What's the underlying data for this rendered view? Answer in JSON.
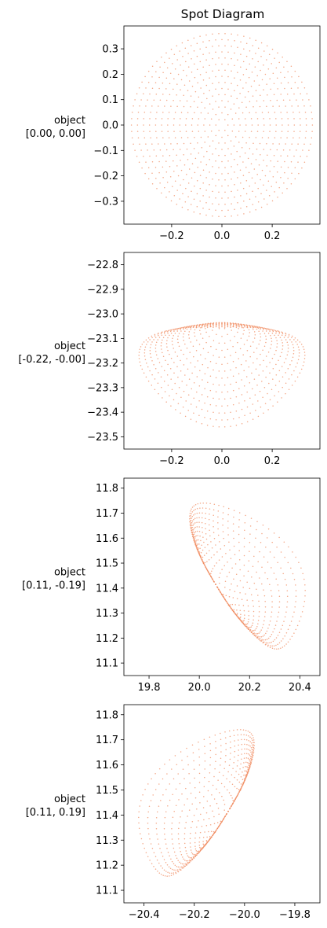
{
  "chart_data": [
    {
      "type": "scatter",
      "title": "Spot Diagram",
      "row_label": [
        "object",
        "[0.00, 0.00]"
      ],
      "xlim": [
        -0.39,
        0.39
      ],
      "ylim": [
        -0.39,
        0.39
      ],
      "xticks": [
        -0.2,
        0.0,
        0.2
      ],
      "xtick_labels": [
        "−0.2",
        "0.0",
        "0.2"
      ],
      "yticks": [
        -0.3,
        -0.2,
        -0.1,
        0.0,
        0.1,
        0.2,
        0.3
      ],
      "ytick_labels": [
        "−0.3",
        "−0.2",
        "−0.1",
        "0.0",
        "0.1",
        "0.2",
        "0.3"
      ],
      "grid": false,
      "marker_color": "#F08A5D",
      "spot": {
        "shape": "disk",
        "center": [
          0.0,
          0.0
        ],
        "radius": 0.36,
        "rings": 15
      }
    },
    {
      "type": "scatter",
      "title": "",
      "row_label": [
        "object",
        "[-0.22, -0.00]"
      ],
      "xlim": [
        -0.39,
        0.39
      ],
      "ylim": [
        -23.55,
        -22.75
      ],
      "xticks": [
        -0.2,
        0.0,
        0.2
      ],
      "xtick_labels": [
        "−0.2",
        "0.0",
        "0.2"
      ],
      "yticks": [
        -23.5,
        -23.4,
        -23.3,
        -23.2,
        -23.1,
        -23.0,
        -22.9,
        -22.8
      ],
      "ytick_labels": [
        "−23.5",
        "−23.4",
        "−23.3",
        "−23.2",
        "−23.1",
        "−23.0",
        "−22.9",
        "−22.8"
      ],
      "grid": false,
      "marker_color": "#F08A5D",
      "spot": {
        "shape": "fan-down",
        "apex": [
          0.0,
          -23.035
        ],
        "x_half_width": 0.33,
        "y_bottom": -23.46,
        "rings": 15
      }
    },
    {
      "type": "scatter",
      "title": "",
      "row_label": [
        "object",
        "[0.11, -0.19]"
      ],
      "xlim": [
        19.7,
        20.48
      ],
      "ylim": [
        11.05,
        11.84
      ],
      "xticks": [
        19.8,
        20.0,
        20.2,
        20.4
      ],
      "xtick_labels": [
        "19.8",
        "20.0",
        "20.2",
        "20.4"
      ],
      "yticks": [
        11.1,
        11.2,
        11.3,
        11.4,
        11.5,
        11.6,
        11.7,
        11.8
      ],
      "ytick_labels": [
        "11.1",
        "11.2",
        "11.3",
        "11.4",
        "11.5",
        "11.6",
        "11.7",
        "11.8"
      ],
      "grid": false,
      "marker_color": "#F08A5D",
      "spot": {
        "shape": "fan-right-down",
        "edge_top": [
          19.9,
          11.69
        ],
        "edge_bottom": [
          20.23,
          11.14
        ],
        "outer_point": [
          20.39,
          11.48
        ],
        "rings": 15
      }
    },
    {
      "type": "scatter",
      "title": "",
      "row_label": [
        "object",
        "[0.11, 0.19]"
      ],
      "xlim": [
        -20.48,
        -19.7
      ],
      "ylim": [
        11.05,
        11.84
      ],
      "xticks": [
        -20.4,
        -20.2,
        -20.0,
        -19.8
      ],
      "xtick_labels": [
        "−20.4",
        "−20.2",
        "−20.0",
        "−19.8"
      ],
      "yticks": [
        11.1,
        11.2,
        11.3,
        11.4,
        11.5,
        11.6,
        11.7,
        11.8
      ],
      "ytick_labels": [
        "11.1",
        "11.2",
        "11.3",
        "11.4",
        "11.5",
        "11.6",
        "11.7",
        "11.8"
      ],
      "grid": false,
      "marker_color": "#F08A5D",
      "spot": {
        "shape": "fan-left-down",
        "edge_top": [
          -19.9,
          11.69
        ],
        "edge_bottom": [
          -20.23,
          11.14
        ],
        "outer_point": [
          -20.39,
          11.48
        ],
        "rings": 15
      }
    }
  ]
}
